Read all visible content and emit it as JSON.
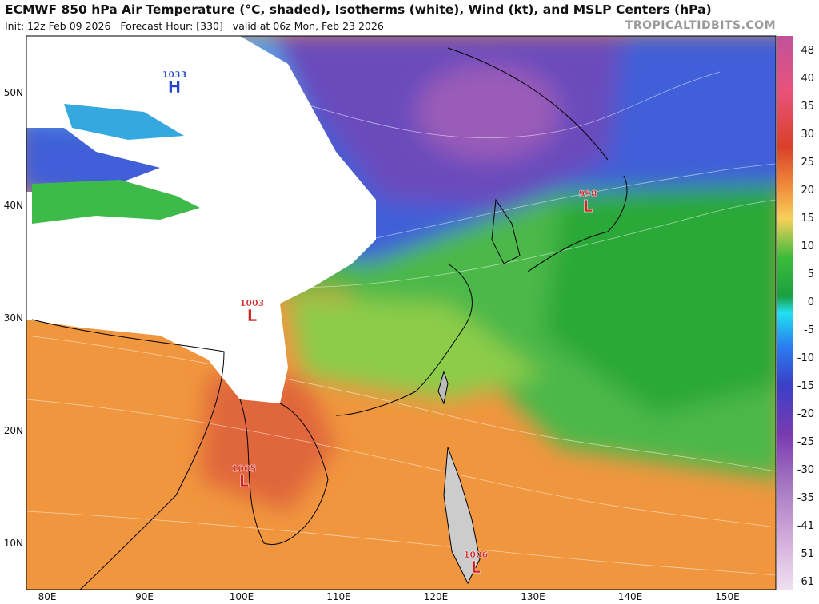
{
  "header": {
    "title": "ECMWF 850 hPa Air Temperature (°C, shaded), Isotherms (white), Wind (kt), and MSLP Centers (hPa)",
    "subtitle": "Init: 12z Feb 09 2026   Forecast Hour: [330]   valid at 06z Mon, Feb 23 2026",
    "site": "TROPICALTIDBITS.COM"
  },
  "map": {
    "latitude_labels": [
      "50N",
      "40N",
      "30N",
      "20N",
      "10N"
    ],
    "longitude_labels": [
      "80E",
      "90E",
      "100E",
      "110E",
      "120E",
      "130E",
      "140E",
      "150E"
    ],
    "pressure_centers": [
      {
        "type": "H",
        "pressure": 1033
      },
      {
        "type": "L",
        "pressure": 998
      },
      {
        "type": "L",
        "pressure": 1003
      },
      {
        "type": "L",
        "pressure": 1005
      },
      {
        "type": "L",
        "pressure": 1006
      }
    ]
  },
  "colorbar": {
    "labels": [
      48,
      40,
      35,
      30,
      25,
      20,
      15,
      10,
      5,
      0,
      -5,
      -10,
      -15,
      -20,
      -25,
      -30,
      -35,
      -41,
      -51,
      -61
    ]
  }
}
